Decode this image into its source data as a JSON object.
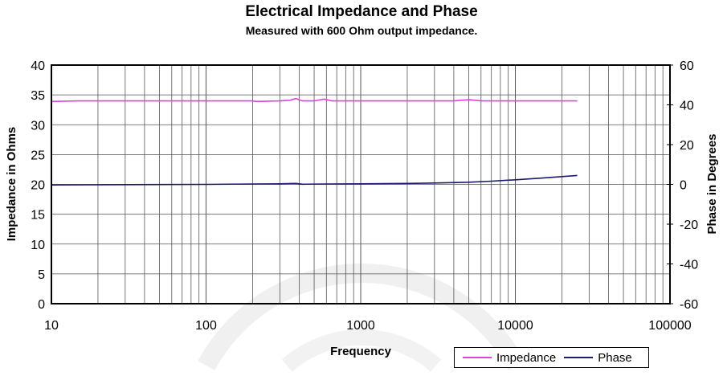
{
  "chart_data": {
    "type": "line",
    "title": "Electrical Impedance and Phase",
    "subtitle": "Measured with 600 Ohm output impedance.",
    "xlabel": "Frequency",
    "ylabel": "Impedance in Ohms",
    "y2label": "Phase in Degrees",
    "xscale": "log",
    "xlim": [
      10,
      100000
    ],
    "ylim": [
      0,
      40
    ],
    "y2lim": [
      -60,
      60
    ],
    "xticks": [
      "10",
      "100",
      "1000",
      "10000",
      "100000"
    ],
    "yticks": [
      "0",
      "5",
      "10",
      "15",
      "20",
      "25",
      "30",
      "35",
      "40"
    ],
    "y2ticks": [
      "-60",
      "-40",
      "-20",
      "0",
      "20",
      "40",
      "60"
    ],
    "grid": true,
    "legend_position": "bottom-right",
    "series": [
      {
        "name": "Impedance",
        "axis": "left",
        "color": "#e040e0",
        "x": [
          10,
          15,
          20,
          50,
          100,
          200,
          210,
          300,
          350,
          380,
          420,
          500,
          580,
          650,
          1000,
          2000,
          4000,
          5000,
          6000,
          10000,
          20000,
          25000
        ],
        "y": [
          33.9,
          34.0,
          34.0,
          34.0,
          34.0,
          34.0,
          33.9,
          34.0,
          34.1,
          34.4,
          34.0,
          34.0,
          34.3,
          34.0,
          34.0,
          34.0,
          34.0,
          34.2,
          34.0,
          34.0,
          34.0,
          34.0
        ]
      },
      {
        "name": "Phase",
        "axis": "right",
        "color": "#1a1a6e",
        "x": [
          10,
          20,
          50,
          100,
          200,
          300,
          380,
          420,
          600,
          1000,
          2000,
          3000,
          5000,
          7000,
          10000,
          15000,
          20000,
          25000
        ],
        "y": [
          -0.3,
          -0.2,
          -0.1,
          0,
          0.2,
          0.3,
          0.5,
          0.1,
          0.2,
          0.3,
          0.5,
          0.7,
          1.1,
          1.6,
          2.3,
          3.2,
          3.9,
          4.5
        ]
      }
    ]
  }
}
